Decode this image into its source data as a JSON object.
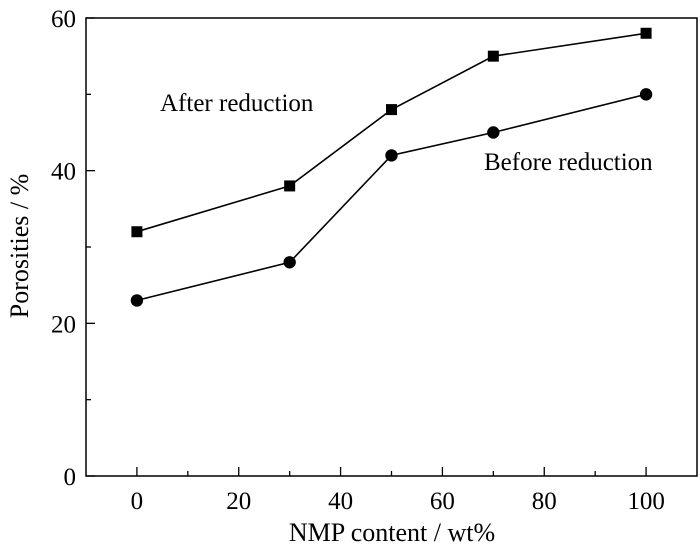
{
  "chart_data": {
    "type": "line",
    "title": "",
    "xlabel": "NMP content / wt%",
    "ylabel": "Porosities / %",
    "xlim": [
      -10,
      110
    ],
    "ylim": [
      0,
      60
    ],
    "xticks": [
      0,
      20,
      40,
      60,
      80,
      100
    ],
    "yticks": [
      0,
      20,
      40,
      60
    ],
    "x_minor_step": 10,
    "y_minor_step": 10,
    "grid": false,
    "x": [
      0,
      30,
      50,
      70,
      100
    ],
    "series": [
      {
        "name": "After reduction",
        "marker": "square",
        "color": "#000000",
        "values": [
          32,
          38,
          48,
          55,
          58
        ]
      },
      {
        "name": "Before reduction",
        "marker": "circle",
        "color": "#000000",
        "values": [
          23,
          28,
          42,
          45,
          50
        ]
      }
    ]
  }
}
